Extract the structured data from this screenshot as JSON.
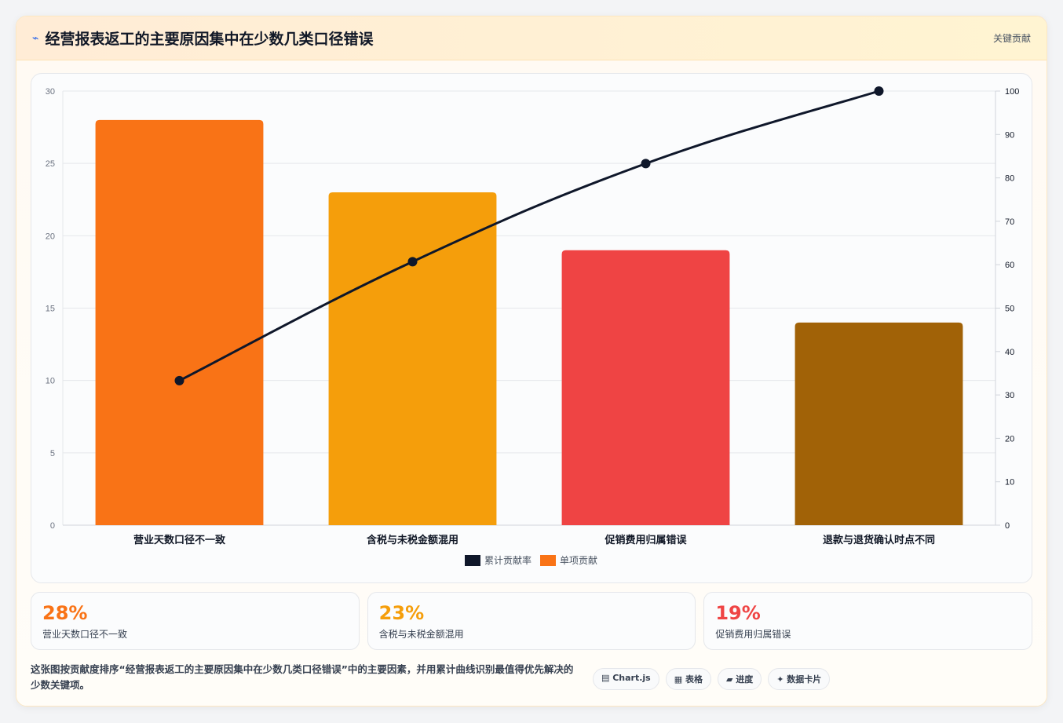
{
  "header": {
    "icon": "bolt-icon",
    "title": "经营报表返工的主要原因集中在少数几类口径错误",
    "tag": "关键贡献"
  },
  "chart_data": {
    "type": "bar",
    "categories": [
      "营业天数口径不一致",
      "含税与未税金额混用",
      "促销费用归属错误",
      "退款与退货确认时点不同"
    ],
    "series": [
      {
        "name": "单项贡献",
        "type": "bar",
        "values": [
          28,
          23,
          19,
          14
        ],
        "colors": [
          "#f97316",
          "#f59e0b",
          "#ef4444",
          "#a16207"
        ],
        "axis": "left"
      },
      {
        "name": "累计贡献率",
        "type": "line",
        "values": [
          33.3,
          60.7,
          83.3,
          100
        ],
        "color": "#0f172a",
        "axis": "right"
      }
    ],
    "ylim_left": [
      0,
      30
    ],
    "yticks_left": [
      0,
      5,
      10,
      15,
      20,
      25,
      30
    ],
    "ylim_right": [
      0,
      100
    ],
    "yticks_right": [
      0,
      10,
      20,
      30,
      40,
      50,
      60,
      70,
      80,
      90,
      100
    ],
    "grid": true,
    "legend_position": "bottom",
    "legend": [
      "累计贡献率",
      "单项贡献"
    ]
  },
  "kpis": [
    {
      "value": "28%",
      "label": "营业天数口径不一致",
      "color": "#f97316"
    },
    {
      "value": "23%",
      "label": "含税与未税金额混用",
      "color": "#f59e0b"
    },
    {
      "value": "19%",
      "label": "促销费用归属错误",
      "color": "#ef4444"
    }
  ],
  "footer": {
    "description": "这张图按贡献度排序“经营报表返工的主要原因集中在少数几类口径错误”中的主要因素，并用累计曲线识别最值得优先解决的少数关键项。",
    "chips": [
      "▤ Chart.js",
      "▦ 表格",
      "▰ 进度",
      "✦ 数据卡片"
    ]
  }
}
